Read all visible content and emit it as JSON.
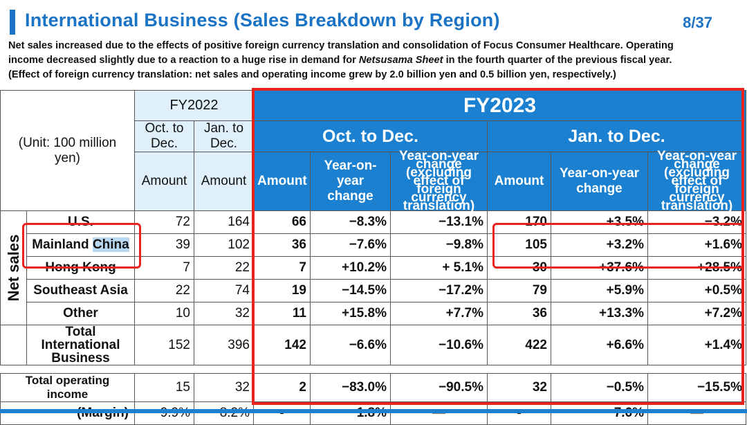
{
  "header": {
    "title": "International Business (Sales Breakdown by Region)",
    "page": "8/37"
  },
  "description": {
    "line1": "Net sales increased due to the effects of positive foreign currency translation and consolidation of Focus Consumer Healthcare. Operating",
    "line2_pre": "income decreased slightly due to a reaction to a huge rise in demand for ",
    "line2_em": "Netsusama Sheet",
    "line2_post": " in the fourth quarter of the previous fiscal year.",
    "line3": "(Effect of foreign currency translation: net sales and operating income grew by 2.0 billion yen and 0.5 billion yen, respectively.)"
  },
  "table": {
    "unit": "(Unit: 100 million yen)",
    "fy2022": "FY2022",
    "fy2023": "FY2023",
    "oct_dec_small": "Oct. to Dec.",
    "jan_dec_small": "Jan. to Dec.",
    "oct_dec": "Oct. to Dec.",
    "jan_dec": "Jan. to Dec.",
    "amount": "Amount",
    "yoy": "Year-on-year change",
    "yoy_ex": "Year-on-year change (excluding effect of foreign currency translation)",
    "net_sales": "Net sales",
    "rows": [
      {
        "label": "U.S.",
        "fy22_q": "72",
        "fy22_y": "164",
        "q_amt": "66",
        "q_yoy": "−8.3%",
        "q_yoyx": "−13.1%",
        "y_amt": "170",
        "y_yoy": "+3.5%",
        "y_yoyx": "−3.2%"
      },
      {
        "label_a": "Mainland ",
        "label_b": "China",
        "fy22_q": "39",
        "fy22_y": "102",
        "q_amt": "36",
        "q_yoy": "−7.6%",
        "q_yoyx": "−9.8%",
        "y_amt": "105",
        "y_yoy": "+3.2%",
        "y_yoyx": "+1.6%"
      },
      {
        "label": "Hong Kong",
        "fy22_q": "7",
        "fy22_y": "22",
        "q_amt": "7",
        "q_yoy": "+10.2%",
        "q_yoyx": "+ 5.1%",
        "y_amt": "30",
        "y_yoy": "+37.6%",
        "y_yoyx": "+28.5%"
      },
      {
        "label": "Southeast Asia",
        "fy22_q": "22",
        "fy22_y": "74",
        "q_amt": "19",
        "q_yoy": "−14.5%",
        "q_yoyx": "−17.2%",
        "y_amt": "79",
        "y_yoy": "+5.9%",
        "y_yoyx": "+0.5%"
      },
      {
        "label": "Other",
        "fy22_q": "10",
        "fy22_y": "32",
        "q_amt": "11",
        "q_yoy": "+15.8%",
        "q_yoyx": "+7.7%",
        "y_amt": "36",
        "y_yoy": "+13.3%",
        "y_yoyx": "+7.2%"
      }
    ],
    "total": {
      "label": "Total International Business",
      "fy22_q": "152",
      "fy22_y": "396",
      "q_amt": "142",
      "q_yoy": "−6.6%",
      "q_yoyx": "−10.6%",
      "y_amt": "422",
      "y_yoy": "+6.6%",
      "y_yoyx": "+1.4%"
    },
    "op_income": {
      "label": "Total operating income",
      "fy22_q": "15",
      "fy22_y": "32",
      "q_amt": "2",
      "q_yoy": "−83.0%",
      "q_yoyx": "−90.5%",
      "y_amt": "32",
      "y_yoy": "−0.5%",
      "y_yoyx": "−15.5%"
    },
    "margin": {
      "label": "(Margin)",
      "fy22_q": "9.9%",
      "fy22_y": "8.2%",
      "q_amt": "-",
      "q_yoy": "1.8%",
      "q_yoyx": "—",
      "y_amt": "-",
      "y_yoy": "7.6%",
      "y_yoyx": "—"
    }
  },
  "colors": {
    "accent": "#1a73c4",
    "header_blue": "#1a80cf",
    "fy22_bg": "#dff0fa",
    "highlight_red": "#e8231e"
  }
}
